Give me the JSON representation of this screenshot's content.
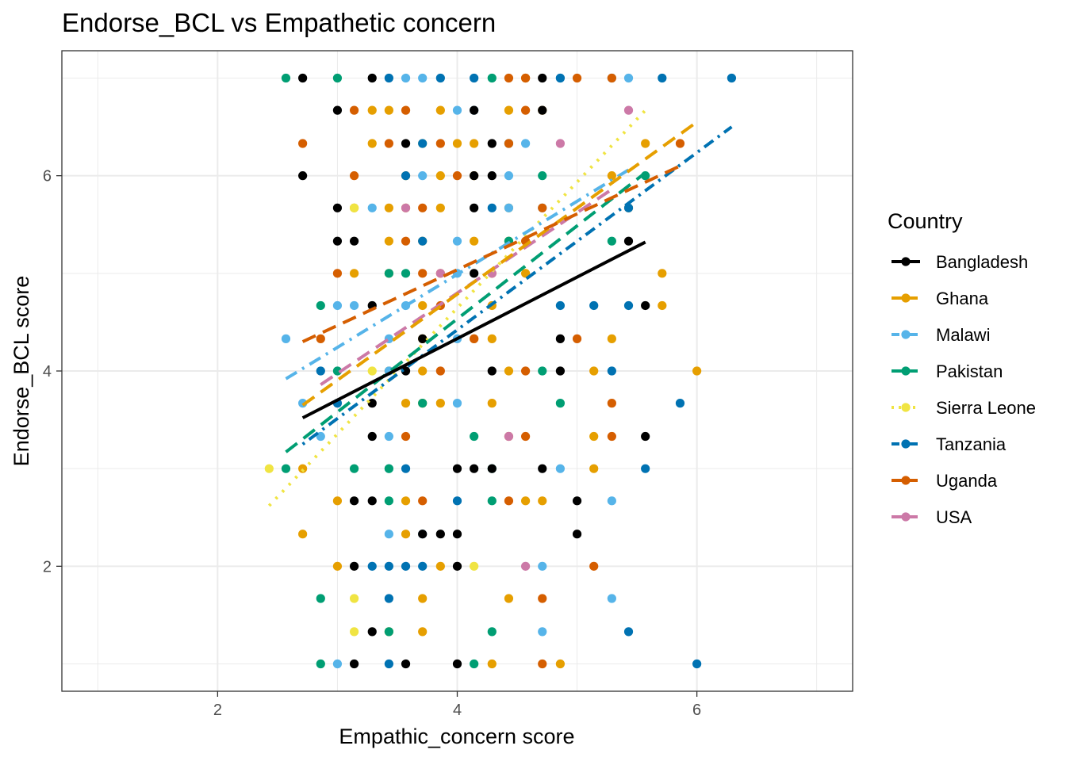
{
  "chart_data": {
    "type": "scatter",
    "title": "Endorse_BCL vs Empathetic concern",
    "xlabel": "Empathic_concern score",
    "ylabel": "Endorse_BCL score",
    "xlim": [
      0.7,
      7.3
    ],
    "ylim": [
      0.72,
      7.28
    ],
    "x_ticks": [
      2,
      4,
      6
    ],
    "y_ticks": [
      2,
      4,
      6
    ],
    "grid": true,
    "legend": {
      "title": "Country",
      "position": "right"
    },
    "series": [
      {
        "name": "Bangladesh",
        "color": "#000000",
        "dash": "solid",
        "trend": [
          [
            2.71,
            3.52
          ],
          [
            5.57,
            5.32
          ]
        ],
        "points": [
          [
            2.71,
            7
          ],
          [
            3.29,
            7
          ],
          [
            4.71,
            7
          ],
          [
            3,
            6.67
          ],
          [
            4.14,
            6.67
          ],
          [
            4.71,
            6.67
          ],
          [
            3.57,
            6.33
          ],
          [
            4.29,
            6.33
          ],
          [
            2.71,
            6
          ],
          [
            4.14,
            6
          ],
          [
            4.29,
            6
          ],
          [
            3,
            5.67
          ],
          [
            4.14,
            5.67
          ],
          [
            3,
            5.33
          ],
          [
            3.14,
            5.33
          ],
          [
            5.43,
            5.33
          ],
          [
            4.14,
            5
          ],
          [
            3.29,
            4.67
          ],
          [
            5.57,
            4.67
          ],
          [
            3.71,
            4.33
          ],
          [
            4.86,
            4.33
          ],
          [
            3.57,
            4
          ],
          [
            4.29,
            4
          ],
          [
            4.86,
            4
          ],
          [
            3.29,
            3.67
          ],
          [
            3.29,
            3.33
          ],
          [
            5.57,
            3.33
          ],
          [
            4,
            3
          ],
          [
            4.14,
            3
          ],
          [
            4.29,
            3
          ],
          [
            4.71,
            3
          ],
          [
            3.14,
            2.67
          ],
          [
            3.29,
            2.67
          ],
          [
            5,
            2.67
          ],
          [
            3.71,
            2.33
          ],
          [
            3.86,
            2.33
          ],
          [
            4,
            2.33
          ],
          [
            5,
            2.33
          ],
          [
            3.14,
            2
          ],
          [
            4,
            2
          ],
          [
            3.29,
            1.33
          ],
          [
            3.14,
            1
          ],
          [
            3.57,
            1
          ],
          [
            4,
            1
          ]
        ]
      },
      {
        "name": "Ghana",
        "color": "#e69f00",
        "dash": "longdash",
        "trend": [
          [
            2.71,
            3.65
          ],
          [
            6.0,
            6.55
          ]
        ],
        "points": [
          [
            4.57,
            7
          ],
          [
            3.29,
            6.67
          ],
          [
            3.43,
            6.67
          ],
          [
            3.86,
            6.67
          ],
          [
            4.43,
            6.67
          ],
          [
            4.71,
            6.67
          ],
          [
            3.29,
            6.33
          ],
          [
            4,
            6.33
          ],
          [
            4.14,
            6.33
          ],
          [
            5.57,
            6.33
          ],
          [
            3.57,
            6
          ],
          [
            3.86,
            6
          ],
          [
            4.14,
            6
          ],
          [
            5.29,
            6
          ],
          [
            3.14,
            5.67
          ],
          [
            3.43,
            5.67
          ],
          [
            3.57,
            5.67
          ],
          [
            3.86,
            5.67
          ],
          [
            4.43,
            5.67
          ],
          [
            5.43,
            5.67
          ],
          [
            3.43,
            5.33
          ],
          [
            3.71,
            5.33
          ],
          [
            4.14,
            5.33
          ],
          [
            4.43,
            5.33
          ],
          [
            3.14,
            5
          ],
          [
            3.43,
            5
          ],
          [
            3.86,
            5
          ],
          [
            4.57,
            5
          ],
          [
            5.71,
            5
          ],
          [
            3.71,
            4.67
          ],
          [
            4.29,
            4.67
          ],
          [
            5.71,
            4.67
          ],
          [
            3.71,
            4.33
          ],
          [
            4.14,
            4.33
          ],
          [
            4.29,
            4.33
          ],
          [
            5.29,
            4.33
          ],
          [
            3.43,
            4
          ],
          [
            3.71,
            4
          ],
          [
            4.43,
            4
          ],
          [
            5.14,
            4
          ],
          [
            6,
            4
          ],
          [
            3.57,
            3.67
          ],
          [
            3.71,
            3.67
          ],
          [
            3.86,
            3.67
          ],
          [
            4.29,
            3.67
          ],
          [
            5.14,
            3.33
          ],
          [
            5.14,
            3
          ],
          [
            2.71,
            3
          ],
          [
            3,
            2.67
          ],
          [
            3.57,
            2.67
          ],
          [
            4.57,
            2.67
          ],
          [
            4.71,
            2.67
          ],
          [
            2.71,
            2.33
          ],
          [
            3.57,
            2.33
          ],
          [
            3,
            2
          ],
          [
            3.86,
            2
          ],
          [
            4.43,
            1.67
          ],
          [
            3.71,
            1.67
          ],
          [
            3.43,
            1.33
          ],
          [
            3.71,
            1.33
          ],
          [
            4.29,
            1
          ],
          [
            4.86,
            1
          ]
        ]
      },
      {
        "name": "Malawi",
        "color": "#56b4e9",
        "dash": "dashdot",
        "trend": [
          [
            2.57,
            3.92
          ],
          [
            5.43,
            6.06
          ]
        ],
        "points": [
          [
            3.57,
            7
          ],
          [
            4.86,
            7
          ],
          [
            5.29,
            7
          ],
          [
            5.43,
            7
          ],
          [
            3.71,
            7
          ],
          [
            4.14,
            6.67
          ],
          [
            4,
            6.67
          ],
          [
            4.57,
            6.33
          ],
          [
            3.71,
            6
          ],
          [
            4.43,
            6
          ],
          [
            3.29,
            5.67
          ],
          [
            4.43,
            5.67
          ],
          [
            4.71,
            5.67
          ],
          [
            4,
            5.33
          ],
          [
            4,
            5
          ],
          [
            3,
            4.67
          ],
          [
            3.14,
            4.67
          ],
          [
            3.57,
            4.67
          ],
          [
            2.57,
            4.33
          ],
          [
            3.43,
            4.33
          ],
          [
            4,
            4.33
          ],
          [
            3.43,
            4
          ],
          [
            2.71,
            3.67
          ],
          [
            4,
            3.67
          ],
          [
            2.86,
            3.33
          ],
          [
            3.43,
            3.33
          ],
          [
            4.86,
            3
          ],
          [
            3.43,
            3
          ],
          [
            5.29,
            2.67
          ],
          [
            3.43,
            2.33
          ],
          [
            3.71,
            2.33
          ],
          [
            4.71,
            2
          ],
          [
            5.29,
            1.67
          ],
          [
            4.71,
            1.33
          ],
          [
            3,
            1
          ]
        ]
      },
      {
        "name": "Pakistan",
        "color": "#009e73",
        "dash": "longdash",
        "trend": [
          [
            2.57,
            3.17
          ],
          [
            5.57,
            6.03
          ]
        ],
        "points": [
          [
            2.57,
            7
          ],
          [
            3,
            7
          ],
          [
            4.29,
            7
          ],
          [
            4.43,
            6.33
          ],
          [
            4.71,
            6
          ],
          [
            5.57,
            6
          ],
          [
            4.43,
            5.33
          ],
          [
            5.29,
            5.33
          ],
          [
            3.43,
            5
          ],
          [
            3.57,
            5
          ],
          [
            2.86,
            4.67
          ],
          [
            3,
            4
          ],
          [
            4.71,
            4
          ],
          [
            3.71,
            3.67
          ],
          [
            4.86,
            3.67
          ],
          [
            4.14,
            3.33
          ],
          [
            2.57,
            3
          ],
          [
            3.14,
            3
          ],
          [
            3.43,
            3
          ],
          [
            4.29,
            3
          ],
          [
            3.43,
            2.67
          ],
          [
            4.29,
            2.67
          ],
          [
            2.86,
            1.67
          ],
          [
            4.29,
            1.33
          ],
          [
            3.43,
            1.33
          ],
          [
            2.86,
            1
          ],
          [
            4.14,
            1
          ]
        ]
      },
      {
        "name": "Sierra Leone",
        "color": "#f0e442",
        "dash": "dotted",
        "trend": [
          [
            2.43,
            2.62
          ],
          [
            5.57,
            6.67
          ]
        ],
        "points": [
          [
            3.71,
            6.33
          ],
          [
            3.14,
            5.67
          ],
          [
            3.29,
            4
          ],
          [
            2.43,
            3
          ],
          [
            4.14,
            2
          ],
          [
            3.14,
            1.67
          ],
          [
            3.14,
            1.33
          ]
        ]
      },
      {
        "name": "Tanzania",
        "color": "#0072b2",
        "dash": "dotdash",
        "trend": [
          [
            2.71,
            3.25
          ],
          [
            6.29,
            6.5
          ]
        ],
        "points": [
          [
            3.43,
            7
          ],
          [
            3.86,
            7
          ],
          [
            4.14,
            7
          ],
          [
            4.86,
            7
          ],
          [
            5.71,
            7
          ],
          [
            6.29,
            7
          ],
          [
            3.71,
            6.33
          ],
          [
            3.57,
            6
          ],
          [
            5.43,
            5.67
          ],
          [
            4.29,
            5.67
          ],
          [
            3.71,
            5.33
          ],
          [
            4.86,
            4.67
          ],
          [
            5.14,
            4.67
          ],
          [
            5.43,
            4.67
          ],
          [
            2.86,
            4
          ],
          [
            5.29,
            4
          ],
          [
            3,
            3.67
          ],
          [
            5.86,
            3.67
          ],
          [
            5.57,
            3
          ],
          [
            3.57,
            3
          ],
          [
            4,
            2.67
          ],
          [
            3.29,
            2
          ],
          [
            3.43,
            2
          ],
          [
            3.57,
            2
          ],
          [
            3.71,
            2
          ],
          [
            3.43,
            1.67
          ],
          [
            5.43,
            1.33
          ],
          [
            3.43,
            1
          ],
          [
            6,
            1
          ]
        ]
      },
      {
        "name": "Uganda",
        "color": "#d55e00",
        "dash": "longdash",
        "trend": [
          [
            2.71,
            4.3
          ],
          [
            5.86,
            6.1
          ]
        ],
        "points": [
          [
            4.43,
            7
          ],
          [
            4.57,
            7
          ],
          [
            5,
            7
          ],
          [
            5.29,
            7
          ],
          [
            4.57,
            6.67
          ],
          [
            3.57,
            6.67
          ],
          [
            3.14,
            6.67
          ],
          [
            2.71,
            6.33
          ],
          [
            3.43,
            6.33
          ],
          [
            3.86,
            6.33
          ],
          [
            4.43,
            6.33
          ],
          [
            5.86,
            6.33
          ],
          [
            3.14,
            6
          ],
          [
            4,
            6
          ],
          [
            3.71,
            5.67
          ],
          [
            4.71,
            5.67
          ],
          [
            4.57,
            5.33
          ],
          [
            3.57,
            5.33
          ],
          [
            3,
            5
          ],
          [
            3.71,
            5
          ],
          [
            4.29,
            5
          ],
          [
            3.86,
            4.67
          ],
          [
            4.14,
            4.33
          ],
          [
            2.86,
            4.33
          ],
          [
            5,
            4.33
          ],
          [
            3.86,
            4
          ],
          [
            4.57,
            4
          ],
          [
            5.29,
            3.67
          ],
          [
            5.29,
            3.33
          ],
          [
            3.57,
            3.33
          ],
          [
            4.43,
            3.33
          ],
          [
            4.57,
            3.33
          ],
          [
            3.71,
            2.67
          ],
          [
            4.43,
            2.67
          ],
          [
            5.14,
            2
          ],
          [
            4.71,
            1.67
          ],
          [
            4.71,
            1
          ]
        ]
      },
      {
        "name": "USA",
        "color": "#cc79a7",
        "dash": "longdash",
        "trend": [
          [
            2.86,
            3.86
          ],
          [
            5.29,
            5.86
          ]
        ],
        "points": [
          [
            4.86,
            6.33
          ],
          [
            5.43,
            6.67
          ],
          [
            3.57,
            5.67
          ],
          [
            4.29,
            5
          ],
          [
            4.43,
            3.33
          ],
          [
            3.86,
            5
          ],
          [
            4.57,
            2
          ]
        ]
      }
    ]
  }
}
